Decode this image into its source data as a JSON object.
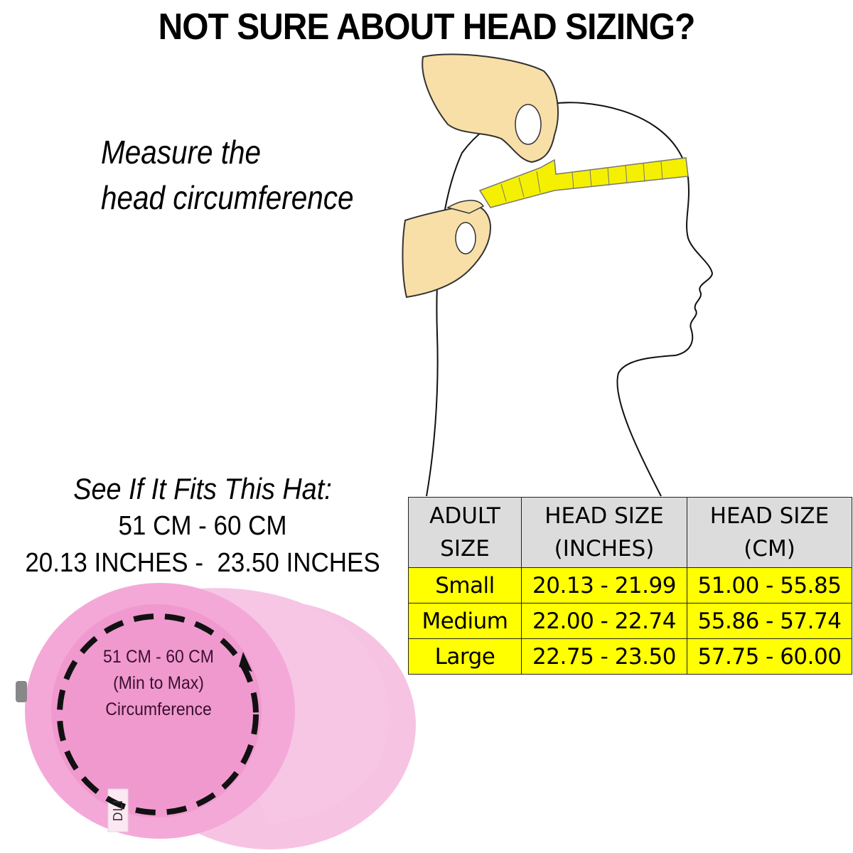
{
  "title": "NOT SURE ABOUT HEAD SIZING?",
  "instruction": {
    "line1": "Measure the",
    "line2": "head circumference"
  },
  "hat_fit": {
    "heading": "See If It Fits This Hat:",
    "cm_range": "51 CM - 60 CM",
    "inch_range": "20.13 INCHES -  23.50 INCHES"
  },
  "hat_label": {
    "line1": "51 CM - 60 CM",
    "line2": "(Min to Max)",
    "line3": "Circumference",
    "brand_tag": "DLI"
  },
  "size_table": {
    "headers": [
      {
        "line1": "ADULT",
        "line2": "SIZE"
      },
      {
        "line1": "HEAD SIZE",
        "line2": "(INCHES)"
      },
      {
        "line1": "HEAD SIZE",
        "line2": "(CM)"
      }
    ],
    "rows": [
      {
        "size": "Small",
        "inches": "20.13 - 21.99",
        "cm": "51.00 - 55.85"
      },
      {
        "size": "Medium",
        "inches": "22.00 - 22.74",
        "cm": "55.86 - 57.74"
      },
      {
        "size": "Large",
        "inches": "22.75 - 23.50",
        "cm": "57.75 - 60.00"
      }
    ]
  },
  "colors": {
    "header_bg": "#dcdcdc",
    "row_bg": "#ffff00",
    "tape": "#f5f000",
    "hand": "#f8dfa8",
    "hat": "#f4a8d8"
  }
}
